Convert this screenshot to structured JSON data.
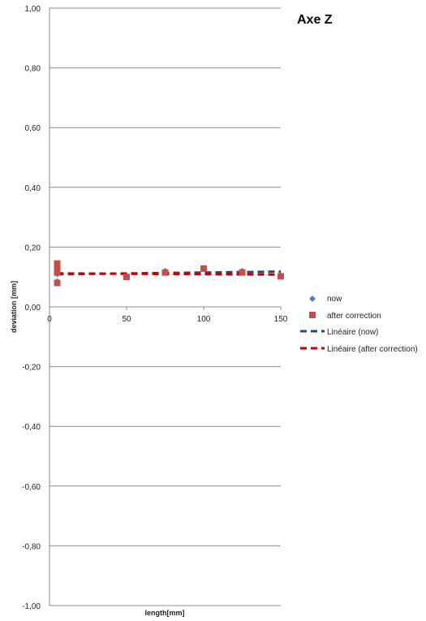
{
  "chart_data": {
    "type": "scatter",
    "title": "Axe Z",
    "xlabel": "length[mm]",
    "ylabel": "deviation [mm]",
    "xlim": [
      0,
      150
    ],
    "ylim": [
      -1.0,
      1.0
    ],
    "x_ticks": [
      "0",
      "50",
      "100",
      "150"
    ],
    "y_ticks": [
      "1,00",
      "0,80",
      "0,60",
      "0,40",
      "0,20",
      "0,00",
      "-0,20",
      "-0,40",
      "-0,60",
      "-0,80",
      "-1,00"
    ],
    "grid": "horizontal",
    "legend_position": "right",
    "series": [
      {
        "name": "now",
        "marker": "diamond",
        "color": "#4F81BD",
        "points": [
          [
            5,
            0.135
          ],
          [
            5,
            0.12
          ],
          [
            5,
            0.11
          ],
          [
            5,
            0.085
          ],
          [
            50,
            0.1
          ],
          [
            75,
            0.12
          ],
          [
            100,
            0.13
          ],
          [
            125,
            0.12
          ],
          [
            150,
            0.105
          ]
        ]
      },
      {
        "name": "after correction",
        "marker": "square",
        "color": "#C0504D",
        "points": [
          [
            5,
            0.145
          ],
          [
            5,
            0.13
          ],
          [
            5,
            0.115
          ],
          [
            5,
            0.08
          ],
          [
            50,
            0.1
          ],
          [
            75,
            0.115
          ],
          [
            100,
            0.128
          ],
          [
            125,
            0.115
          ],
          [
            150,
            0.102
          ]
        ]
      }
    ],
    "trendlines": [
      {
        "name": "Linéaire (now)",
        "color": "#1F4E79",
        "x": [
          5,
          150
        ],
        "y": [
          0.109,
          0.118
        ]
      },
      {
        "name": "Linéaire (after correction)",
        "color": "#C00000",
        "x": [
          5,
          150
        ],
        "y": [
          0.112,
          0.108
        ]
      }
    ]
  }
}
